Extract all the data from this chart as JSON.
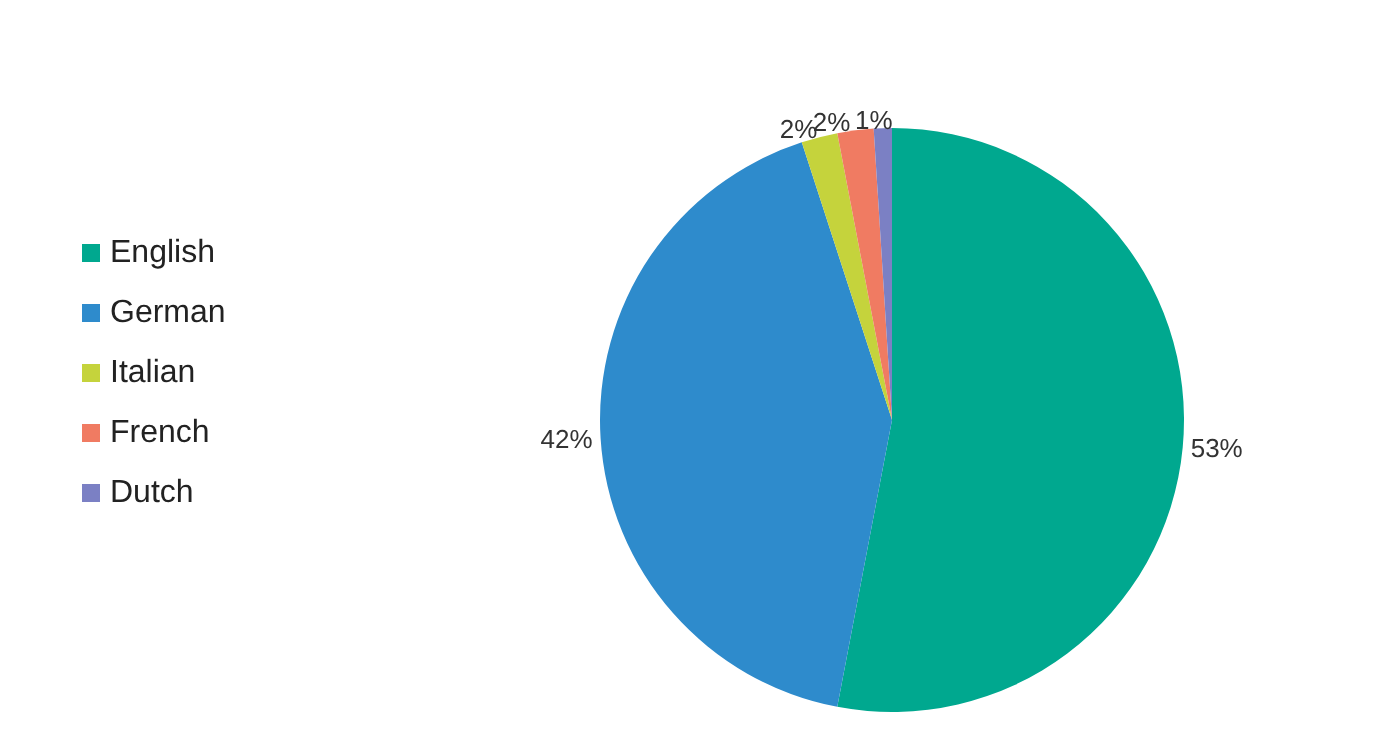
{
  "chart_data": {
    "type": "pie",
    "categories": [
      "English",
      "German",
      "Italian",
      "French",
      "Dutch"
    ],
    "values": [
      53,
      42,
      2,
      2,
      1
    ],
    "colors": [
      "#00a88f",
      "#2e8bcc",
      "#c5d33c",
      "#f07b62",
      "#7b80c4"
    ],
    "value_labels": [
      "53%",
      "42%",
      "2%",
      "2%",
      "1%"
    ],
    "legend": "left"
  }
}
